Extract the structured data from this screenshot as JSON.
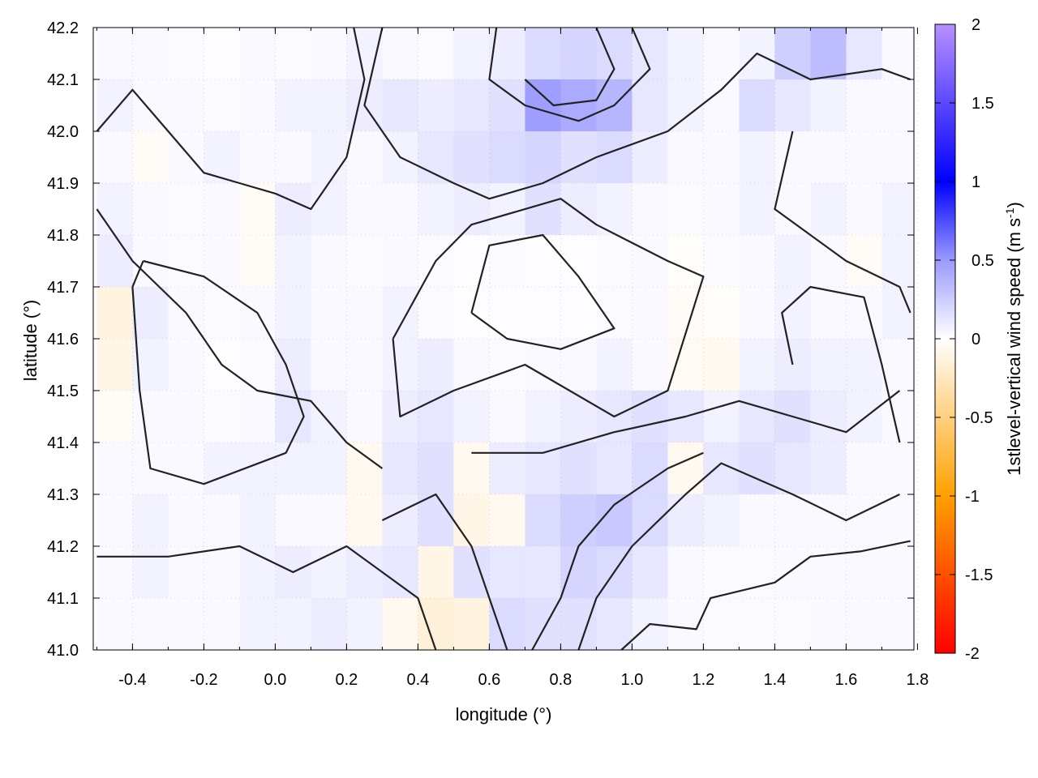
{
  "chart_data": {
    "type": "heatmap",
    "xlabel": "longitude (°)",
    "ylabel": "latitude (°)",
    "colorbar_label": "1stlevel-vertical wind speed (m s",
    "colorbar_label_sup": "-1",
    "colorbar_label_end": ")",
    "xlim": [
      -0.51,
      1.79
    ],
    "ylim": [
      41.0,
      42.2
    ],
    "clim": [
      -2,
      2
    ],
    "grid": true,
    "xticks": [
      "-0.4",
      "-0.2",
      "0.0",
      "0.2",
      "0.4",
      "0.6",
      "0.8",
      "1.0",
      "1.2",
      "1.4",
      "1.6",
      "1.8"
    ],
    "xtick_values": [
      -0.4,
      -0.2,
      0.0,
      0.2,
      0.4,
      0.6,
      0.8,
      1.0,
      1.2,
      1.4,
      1.6,
      1.8
    ],
    "yticks": [
      "41.0",
      "41.1",
      "41.2",
      "41.3",
      "41.4",
      "41.5",
      "41.6",
      "41.7",
      "41.8",
      "41.9",
      "42.0",
      "42.1",
      "42.2"
    ],
    "ytick_values": [
      41.0,
      41.1,
      41.2,
      41.3,
      41.4,
      41.5,
      41.6,
      41.7,
      41.8,
      41.9,
      42.0,
      42.1,
      42.2
    ],
    "cbticks": [
      "2",
      "1.5",
      "1",
      "0.5",
      "0",
      "-0.5",
      "-1",
      "-1.5",
      "-2"
    ],
    "cbtick_values": [
      2,
      1.5,
      1,
      0.5,
      0,
      -0.5,
      -1,
      -1.5,
      -2
    ],
    "colormap": [
      "#ff0000",
      "#ff8c00",
      "#ffa500",
      "#fff8f0",
      "#ffffff",
      "#9090ff",
      "#0000ff",
      "#5050ff",
      "#b080ff"
    ],
    "contour_color": "#222222",
    "grid_lon_start": -0.5,
    "grid_lon_step": 0.1,
    "grid_lat_top": 42.2,
    "grid_lat_step": 0.1,
    "values": [
      [
        0.05,
        0.05,
        0.03,
        0.02,
        0.05,
        0.03,
        0.05,
        0.1,
        0.05,
        0.03,
        0.1,
        0.15,
        0.3,
        0.35,
        0.3,
        0.2,
        0.1,
        0.05,
        0.1,
        0.4,
        0.55,
        0.2,
        0.05
      ],
      [
        0.1,
        0.05,
        0.05,
        0.03,
        0.05,
        0.1,
        0.1,
        0.15,
        0.2,
        0.15,
        0.2,
        0.25,
        0.8,
        0.7,
        0.6,
        0.2,
        0.1,
        0.05,
        0.3,
        0.2,
        0.1,
        0.05,
        0.05
      ],
      [
        0.05,
        -0.05,
        0.05,
        0.1,
        0.05,
        0.05,
        0.1,
        0.05,
        0.1,
        0.2,
        0.25,
        0.3,
        0.35,
        0.25,
        0.3,
        0.15,
        0.05,
        0.05,
        0.1,
        0.05,
        0.05,
        0.05,
        0.05
      ],
      [
        0.1,
        0.05,
        0.03,
        0.05,
        -0.05,
        0.15,
        0.1,
        0.05,
        0.05,
        0.1,
        0.15,
        0.1,
        0.25,
        0.15,
        0.1,
        0.05,
        0.03,
        0.05,
        0.1,
        0.05,
        0.1,
        0.05,
        0.1
      ],
      [
        0.15,
        0.05,
        0.03,
        0.05,
        -0.05,
        0.1,
        0.05,
        0.03,
        0.05,
        0.03,
        0.02,
        0.03,
        0.02,
        0.02,
        0.03,
        0.05,
        -0.03,
        0.03,
        0.05,
        0.1,
        0.05,
        -0.05,
        0.1
      ],
      [
        -0.2,
        0.15,
        0.05,
        0.03,
        0.05,
        0.1,
        0.05,
        0.05,
        0.1,
        0.03,
        0.02,
        0.02,
        0.02,
        0.02,
        0.03,
        0.05,
        -0.05,
        -0.03,
        0.05,
        0.1,
        0.05,
        0.05,
        0.1
      ],
      [
        -0.15,
        0.1,
        0.05,
        0.02,
        0.03,
        0.15,
        0.05,
        0.05,
        0.1,
        0.15,
        0.05,
        0.03,
        0.05,
        0.05,
        0.1,
        0.05,
        -0.08,
        -0.1,
        0.1,
        0.15,
        0.1,
        0.1,
        0.05
      ],
      [
        -0.05,
        0.05,
        0.05,
        0.03,
        0.05,
        0.2,
        0.1,
        0.05,
        0.15,
        0.2,
        0.1,
        0.05,
        0.1,
        0.15,
        0.2,
        0.25,
        0.2,
        0.1,
        0.2,
        0.25,
        0.15,
        0.1,
        0.05
      ],
      [
        0.05,
        0.05,
        0.05,
        0.1,
        0.1,
        0.1,
        0.1,
        -0.1,
        0.2,
        0.25,
        -0.1,
        0.15,
        0.2,
        0.25,
        0.2,
        0.3,
        -0.1,
        0.2,
        0.25,
        0.2,
        0.15,
        0.05,
        0.05
      ],
      [
        0.05,
        0.1,
        0.05,
        0.05,
        0.1,
        0.05,
        0.05,
        -0.1,
        0.15,
        0.25,
        -0.15,
        -0.1,
        0.3,
        0.4,
        0.45,
        0.3,
        0.15,
        0.1,
        0.05,
        0.05,
        0.05,
        0.05,
        0.05
      ],
      [
        0.05,
        0.1,
        0.05,
        0.05,
        0.1,
        0.15,
        0.1,
        0.15,
        0.2,
        -0.15,
        0.25,
        0.2,
        0.2,
        0.35,
        0.3,
        0.2,
        0.05,
        0.03,
        0.03,
        0.05,
        0.05,
        0.05,
        0.05
      ],
      [
        0.05,
        0.05,
        0.05,
        0.05,
        0.1,
        0.1,
        0.15,
        0.1,
        -0.1,
        -0.25,
        -0.2,
        0.3,
        0.25,
        0.25,
        0.2,
        0.1,
        0.05,
        0.03,
        0.03,
        0.03,
        0.05,
        0.05,
        0.05
      ]
    ],
    "contours": [
      [
        [
          0.97,
          41.0
        ],
        [
          1.05,
          41.05
        ],
        [
          1.18,
          41.04
        ],
        [
          1.22,
          41.1
        ],
        [
          1.4,
          41.13
        ],
        [
          1.5,
          41.18
        ],
        [
          1.64,
          41.19
        ],
        [
          1.78,
          41.21
        ]
      ],
      [
        [
          0.33,
          41.6
        ],
        [
          0.45,
          41.75
        ],
        [
          0.55,
          41.82
        ],
        [
          0.8,
          41.87
        ],
        [
          0.9,
          41.82
        ],
        [
          1.1,
          41.75
        ],
        [
          1.2,
          41.72
        ],
        [
          1.1,
          41.5
        ],
        [
          0.95,
          41.45
        ],
        [
          0.7,
          41.55
        ],
        [
          0.5,
          41.5
        ],
        [
          0.35,
          41.45
        ],
        [
          0.33,
          41.6
        ]
      ],
      [
        [
          0.55,
          41.65
        ],
        [
          0.6,
          41.78
        ],
        [
          0.75,
          41.8
        ],
        [
          0.85,
          41.72
        ],
        [
          0.95,
          41.62
        ],
        [
          0.8,
          41.58
        ],
        [
          0.65,
          41.6
        ],
        [
          0.55,
          41.65
        ]
      ],
      [
        [
          -0.37,
          41.75
        ],
        [
          -0.2,
          41.72
        ],
        [
          -0.05,
          41.65
        ],
        [
          0.03,
          41.55
        ],
        [
          0.08,
          41.45
        ],
        [
          0.03,
          41.38
        ],
        [
          -0.2,
          41.32
        ],
        [
          -0.35,
          41.35
        ],
        [
          -0.38,
          41.5
        ],
        [
          -0.4,
          41.7
        ],
        [
          -0.37,
          41.75
        ]
      ],
      [
        [
          0.62,
          42.2
        ],
        [
          0.6,
          42.1
        ],
        [
          0.7,
          42.05
        ],
        [
          0.85,
          42.02
        ],
        [
          0.95,
          42.05
        ],
        [
          1.05,
          42.12
        ],
        [
          1.0,
          42.2
        ]
      ],
      [
        [
          0.7,
          42.1
        ],
        [
          0.78,
          42.05
        ],
        [
          0.9,
          42.06
        ],
        [
          0.95,
          42.12
        ],
        [
          0.9,
          42.2
        ]
      ],
      [
        [
          0.55,
          41.38
        ],
        [
          0.75,
          41.38
        ],
        [
          0.95,
          41.42
        ],
        [
          1.15,
          41.45
        ],
        [
          1.3,
          41.48
        ],
        [
          1.45,
          41.45
        ],
        [
          1.6,
          41.42
        ],
        [
          1.75,
          41.5
        ]
      ],
      [
        [
          0.3,
          41.25
        ],
        [
          0.45,
          41.3
        ],
        [
          0.55,
          41.2
        ],
        [
          0.6,
          41.1
        ],
        [
          0.65,
          41.0
        ]
      ],
      [
        [
          0.72,
          41.0
        ],
        [
          0.8,
          41.1
        ],
        [
          0.85,
          41.2
        ],
        [
          0.95,
          41.28
        ],
        [
          1.1,
          41.35
        ],
        [
          1.2,
          41.38
        ]
      ],
      [
        [
          0.85,
          41.0
        ],
        [
          0.9,
          41.1
        ],
        [
          1.0,
          41.2
        ],
        [
          1.15,
          41.3
        ],
        [
          1.25,
          41.36
        ],
        [
          1.45,
          41.3
        ],
        [
          1.6,
          41.25
        ],
        [
          1.75,
          41.3
        ]
      ],
      [
        [
          -0.5,
          41.18
        ],
        [
          -0.3,
          41.18
        ],
        [
          -0.1,
          41.2
        ],
        [
          0.05,
          41.15
        ],
        [
          0.2,
          41.2
        ],
        [
          0.3,
          41.15
        ],
        [
          0.4,
          41.1
        ],
        [
          0.45,
          41.0
        ]
      ],
      [
        [
          -0.5,
          42.0
        ],
        [
          -0.4,
          42.08
        ],
        [
          -0.3,
          42.0
        ],
        [
          -0.2,
          41.92
        ],
        [
          -0.1,
          41.9
        ],
        [
          0.0,
          41.88
        ],
        [
          0.1,
          41.85
        ],
        [
          0.2,
          41.95
        ],
        [
          0.25,
          42.1
        ],
        [
          0.22,
          42.2
        ]
      ],
      [
        [
          -0.5,
          41.85
        ],
        [
          -0.4,
          41.75
        ],
        [
          -0.25,
          41.65
        ],
        [
          -0.15,
          41.55
        ],
        [
          -0.05,
          41.5
        ],
        [
          0.1,
          41.48
        ],
        [
          0.2,
          41.4
        ],
        [
          0.3,
          41.35
        ]
      ],
      [
        [
          1.45,
          42.0
        ],
        [
          1.4,
          41.85
        ],
        [
          1.5,
          41.8
        ],
        [
          1.6,
          41.75
        ],
        [
          1.75,
          41.7
        ],
        [
          1.78,
          41.65
        ]
      ],
      [
        [
          1.45,
          41.55
        ],
        [
          1.42,
          41.65
        ],
        [
          1.5,
          41.7
        ],
        [
          1.65,
          41.68
        ],
        [
          1.7,
          41.55
        ],
        [
          1.75,
          41.4
        ]
      ],
      [
        [
          0.3,
          42.2
        ],
        [
          0.25,
          42.05
        ],
        [
          0.35,
          41.95
        ],
        [
          0.5,
          41.9
        ],
        [
          0.6,
          41.87
        ],
        [
          0.75,
          41.9
        ],
        [
          0.9,
          41.95
        ],
        [
          1.1,
          42.0
        ],
        [
          1.25,
          42.08
        ],
        [
          1.35,
          42.15
        ],
        [
          1.5,
          42.1
        ],
        [
          1.7,
          42.12
        ],
        [
          1.78,
          42.1
        ]
      ]
    ]
  }
}
